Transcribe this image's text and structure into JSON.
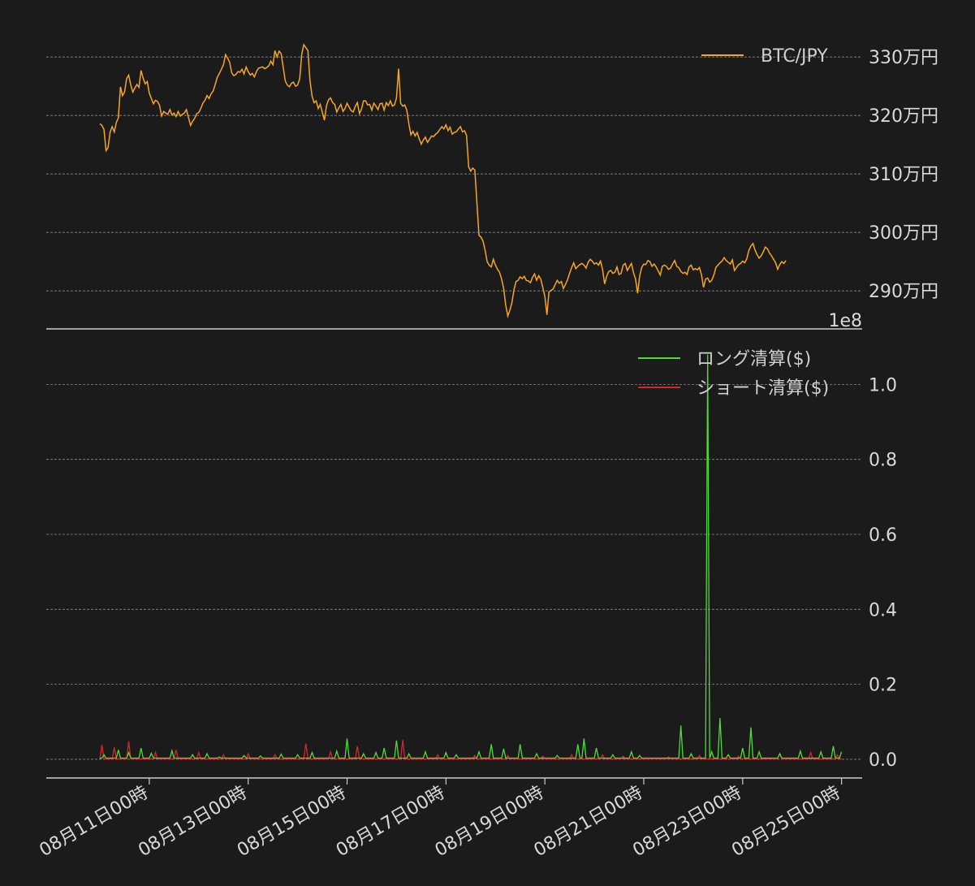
{
  "chart_data": [
    {
      "type": "line",
      "series": [
        {
          "name": "BTC/JPY",
          "color": "#f5a623",
          "x_start": "2024-08-10T00:00",
          "x_step_hours": 1,
          "values": [
            3186000,
            3183000,
            3176000,
            3140000,
            3145000,
            3172000,
            3181000,
            3172000,
            3188000,
            3196000,
            3249000,
            3234000,
            3240000,
            3263000,
            3269000,
            3252000,
            3240000,
            3247000,
            3253000,
            3248000,
            3277000,
            3264000,
            3254000,
            3258000,
            3238000,
            3229000,
            3220000,
            3226000,
            3224000,
            3217000,
            3199000,
            3207000,
            3204000,
            3202000,
            3210000,
            3201000,
            3204000,
            3198000,
            3207000,
            3199000,
            3202000,
            3204000,
            3210000,
            3197000,
            3183000,
            3190000,
            3195000,
            3203000,
            3205000,
            3212000,
            3221000,
            3226000,
            3234000,
            3229000,
            3237000,
            3242000,
            3253000,
            3265000,
            3272000,
            3279000,
            3287000,
            3304000,
            3298000,
            3291000,
            3273000,
            3268000,
            3270000,
            3275000,
            3274000,
            3279000,
            3271000,
            3283000,
            3275000,
            3269000,
            3272000,
            3266000,
            3275000,
            3281000,
            3282000,
            3283000,
            3280000,
            3282000,
            3285000,
            3293000,
            3287000,
            3311000,
            3300000,
            3310000,
            3306000,
            3282000,
            3259000,
            3252000,
            3249000,
            3255000,
            3257000,
            3250000,
            3252000,
            3263000,
            3305000,
            3321000,
            3316000,
            3311000,
            3260000,
            3233000,
            3222000,
            3225000,
            3212000,
            3219000,
            3205000,
            3192000,
            3217000,
            3227000,
            3230000,
            3222000,
            3219000,
            3206000,
            3213000,
            3219000,
            3207000,
            3212000,
            3221000,
            3214000,
            3208000,
            3206000,
            3216000,
            3222000,
            3203000,
            3211000,
            3225000,
            3225000,
            3218000,
            3219000,
            3209000,
            3221000,
            3216000,
            3210000,
            3220000,
            3221000,
            3209000,
            3222000,
            3217000,
            3225000,
            3216000,
            3218000,
            3230000,
            3280000,
            3221000,
            3216000,
            3218000,
            3209000,
            3185000,
            3167000,
            3173000,
            3165000,
            3171000,
            3160000,
            3151000,
            3158000,
            3163000,
            3154000,
            3159000,
            3165000,
            3164000,
            3168000,
            3171000,
            3176000,
            3181000,
            3177000,
            3184000,
            3174000,
            3180000,
            3168000,
            3171000,
            3172000,
            3177000,
            3181000,
            3172000,
            3174000,
            3166000,
            3112000,
            3105000,
            3110000,
            3107000,
            3052000,
            2995000,
            2992000,
            2985000,
            2969000,
            2950000,
            2944000,
            2941000,
            2954000,
            2944000,
            2937000,
            2932000,
            2920000,
            2904000,
            2876000,
            2857000,
            2867000,
            2880000,
            2902000,
            2916000,
            2918000,
            2924000,
            2921000,
            2925000,
            2918000,
            2917000,
            2914000,
            2923000,
            2929000,
            2918000,
            2926000,
            2920000,
            2906000,
            2890000,
            2859000,
            2898000,
            2901000,
            2903000,
            2911000,
            2918000,
            2913000,
            2916000,
            2904000,
            2911000,
            2919000,
            2930000,
            2940000,
            2948000,
            2938000,
            2942000,
            2945000,
            2947000,
            2944000,
            2939000,
            2949000,
            2954000,
            2951000,
            2946000,
            2948000,
            2944000,
            2951000,
            2937000,
            2912000,
            2925000,
            2933000,
            2935000,
            2930000,
            2932000,
            2941000,
            2928000,
            2930000,
            2944000,
            2947000,
            2935000,
            2941000,
            2947000,
            2931000,
            2921000,
            2896000,
            2925000,
            2940000,
            2946000,
            2945000,
            2952000,
            2950000,
            2942000,
            2946000,
            2941000,
            2934000,
            2927000,
            2942000,
            2944000,
            2942000,
            2937000,
            2939000,
            2946000,
            2952000,
            2942000,
            2940000,
            2933000,
            2930000,
            2932000,
            2928000,
            2941000,
            2944000,
            2936000,
            2938000,
            2936000,
            2940000,
            2928000,
            2906000,
            2920000,
            2922000,
            2915000,
            2918000,
            2927000,
            2940000,
            2944000,
            2948000,
            2951000,
            2957000,
            2952000,
            2949000,
            2946000,
            2953000,
            2935000,
            2940000,
            2945000,
            2947000,
            2951000,
            2948000,
            2955000,
            2969000,
            2977000,
            2981000,
            2970000,
            2962000,
            2956000,
            2960000,
            2967000,
            2975000,
            2972000,
            2965000,
            2960000,
            2954000,
            2948000,
            2937000,
            2945000,
            2950000,
            2947000,
            2952000
          ],
          "plot_note": "approximate hourly trace read from the figure"
        }
      ],
      "yticks": [
        2900000,
        3000000,
        3100000,
        3200000,
        3300000
      ],
      "ytick_labels": [
        "290万円",
        "300万円",
        "310万円",
        "320万円",
        "330万円"
      ],
      "offset_text": "1e8",
      "ylim": [
        2835000,
        3335000
      ],
      "xlim": [
        -26,
        370
      ],
      "legend": "top-right",
      "grid": "horizontal dashed"
    },
    {
      "type": "line",
      "series": [
        {
          "name": "ロング清算($)",
          "color": "#4ddc35",
          "baseline": 0.003,
          "spikes": [
            [
              2,
              0.012
            ],
            [
              9,
              0.025
            ],
            [
              14,
              0.018
            ],
            [
              20,
              0.03
            ],
            [
              25,
              0.016
            ],
            [
              35,
              0.023
            ],
            [
              45,
              0.012
            ],
            [
              52,
              0.015
            ],
            [
              58,
              0.006
            ],
            [
              70,
              0.01
            ],
            [
              78,
              0.009
            ],
            [
              88,
              0.014
            ],
            [
              96,
              0.012
            ],
            [
              103,
              0.018
            ],
            [
              115,
              0.022
            ],
            [
              120,
              0.055
            ],
            [
              128,
              0.015
            ],
            [
              134,
              0.018
            ],
            [
              138,
              0.03
            ],
            [
              144,
              0.05
            ],
            [
              150,
              0.015
            ],
            [
              158,
              0.02
            ],
            [
              168,
              0.018
            ],
            [
              173,
              0.012
            ],
            [
              184,
              0.02
            ],
            [
              190,
              0.04
            ],
            [
              196,
              0.028
            ],
            [
              204,
              0.04
            ],
            [
              212,
              0.015
            ],
            [
              222,
              0.01
            ],
            [
              232,
              0.04
            ],
            [
              235,
              0.055
            ],
            [
              241,
              0.03
            ],
            [
              249,
              0.012
            ],
            [
              258,
              0.02
            ],
            [
              262,
              0.01
            ],
            [
              282,
              0.09
            ],
            [
              287,
              0.015
            ],
            [
              295,
              1.08
            ],
            [
              297,
              0.02
            ],
            [
              301,
              0.11
            ],
            [
              305,
              0.012
            ],
            [
              312,
              0.03
            ],
            [
              316,
              0.085
            ],
            [
              320,
              0.02
            ],
            [
              330,
              0.015
            ],
            [
              340,
              0.022
            ],
            [
              350,
              0.02
            ],
            [
              356,
              0.035
            ],
            [
              360,
              0.02
            ],
            [
              365,
              0.015
            ],
            [
              370,
              0.025
            ]
          ]
        },
        {
          "name": "ショート清算($)",
          "color": "#d6252b",
          "baseline": 0.001,
          "spikes": [
            [
              1,
              0.038
            ],
            [
              7,
              0.032
            ],
            [
              14,
              0.048
            ],
            [
              27,
              0.018
            ],
            [
              37,
              0.025
            ],
            [
              48,
              0.018
            ],
            [
              60,
              0.012
            ],
            [
              72,
              0.015
            ],
            [
              85,
              0.012
            ],
            [
              100,
              0.042
            ],
            [
              112,
              0.02
            ],
            [
              125,
              0.035
            ],
            [
              147,
              0.052
            ],
            [
              164,
              0.012
            ],
            [
              182,
              0.01
            ],
            [
              198,
              0.01
            ],
            [
              215,
              0.008
            ],
            [
              229,
              0.012
            ],
            [
              244,
              0.012
            ],
            [
              254,
              0.008
            ],
            [
              276,
              0.006
            ],
            [
              291,
              0.01
            ],
            [
              310,
              0.008
            ],
            [
              330,
              0.015
            ],
            [
              345,
              0.018
            ],
            [
              358,
              0.012
            ],
            [
              368,
              0.035
            ],
            [
              375,
              0.01
            ]
          ]
        }
      ],
      "yticks": [
        0.0,
        0.2,
        0.4,
        0.6,
        0.8,
        1.0
      ],
      "ytick_labels": [
        "0.0",
        "0.2",
        "0.4",
        "0.6",
        "0.8",
        "1.0"
      ],
      "ylim": [
        -0.05,
        1.12
      ],
      "xlim": [
        -26,
        370
      ],
      "x_ticks": [
        24,
        72,
        120,
        168,
        216,
        264,
        312,
        360
      ],
      "x_tick_labels": [
        "08月11日00時",
        "08月13日00時",
        "08月15日00時",
        "08月17日00時",
        "08月19日00時",
        "08月21日00時",
        "08月23日00時",
        "08月25日00時"
      ],
      "legend": "top-right",
      "grid": "horizontal dashed"
    }
  ],
  "colors": {
    "background": "#1b1b1b",
    "grid": "#8a8a8a",
    "axis": "#cccccc",
    "text": "#d9d9d9"
  }
}
